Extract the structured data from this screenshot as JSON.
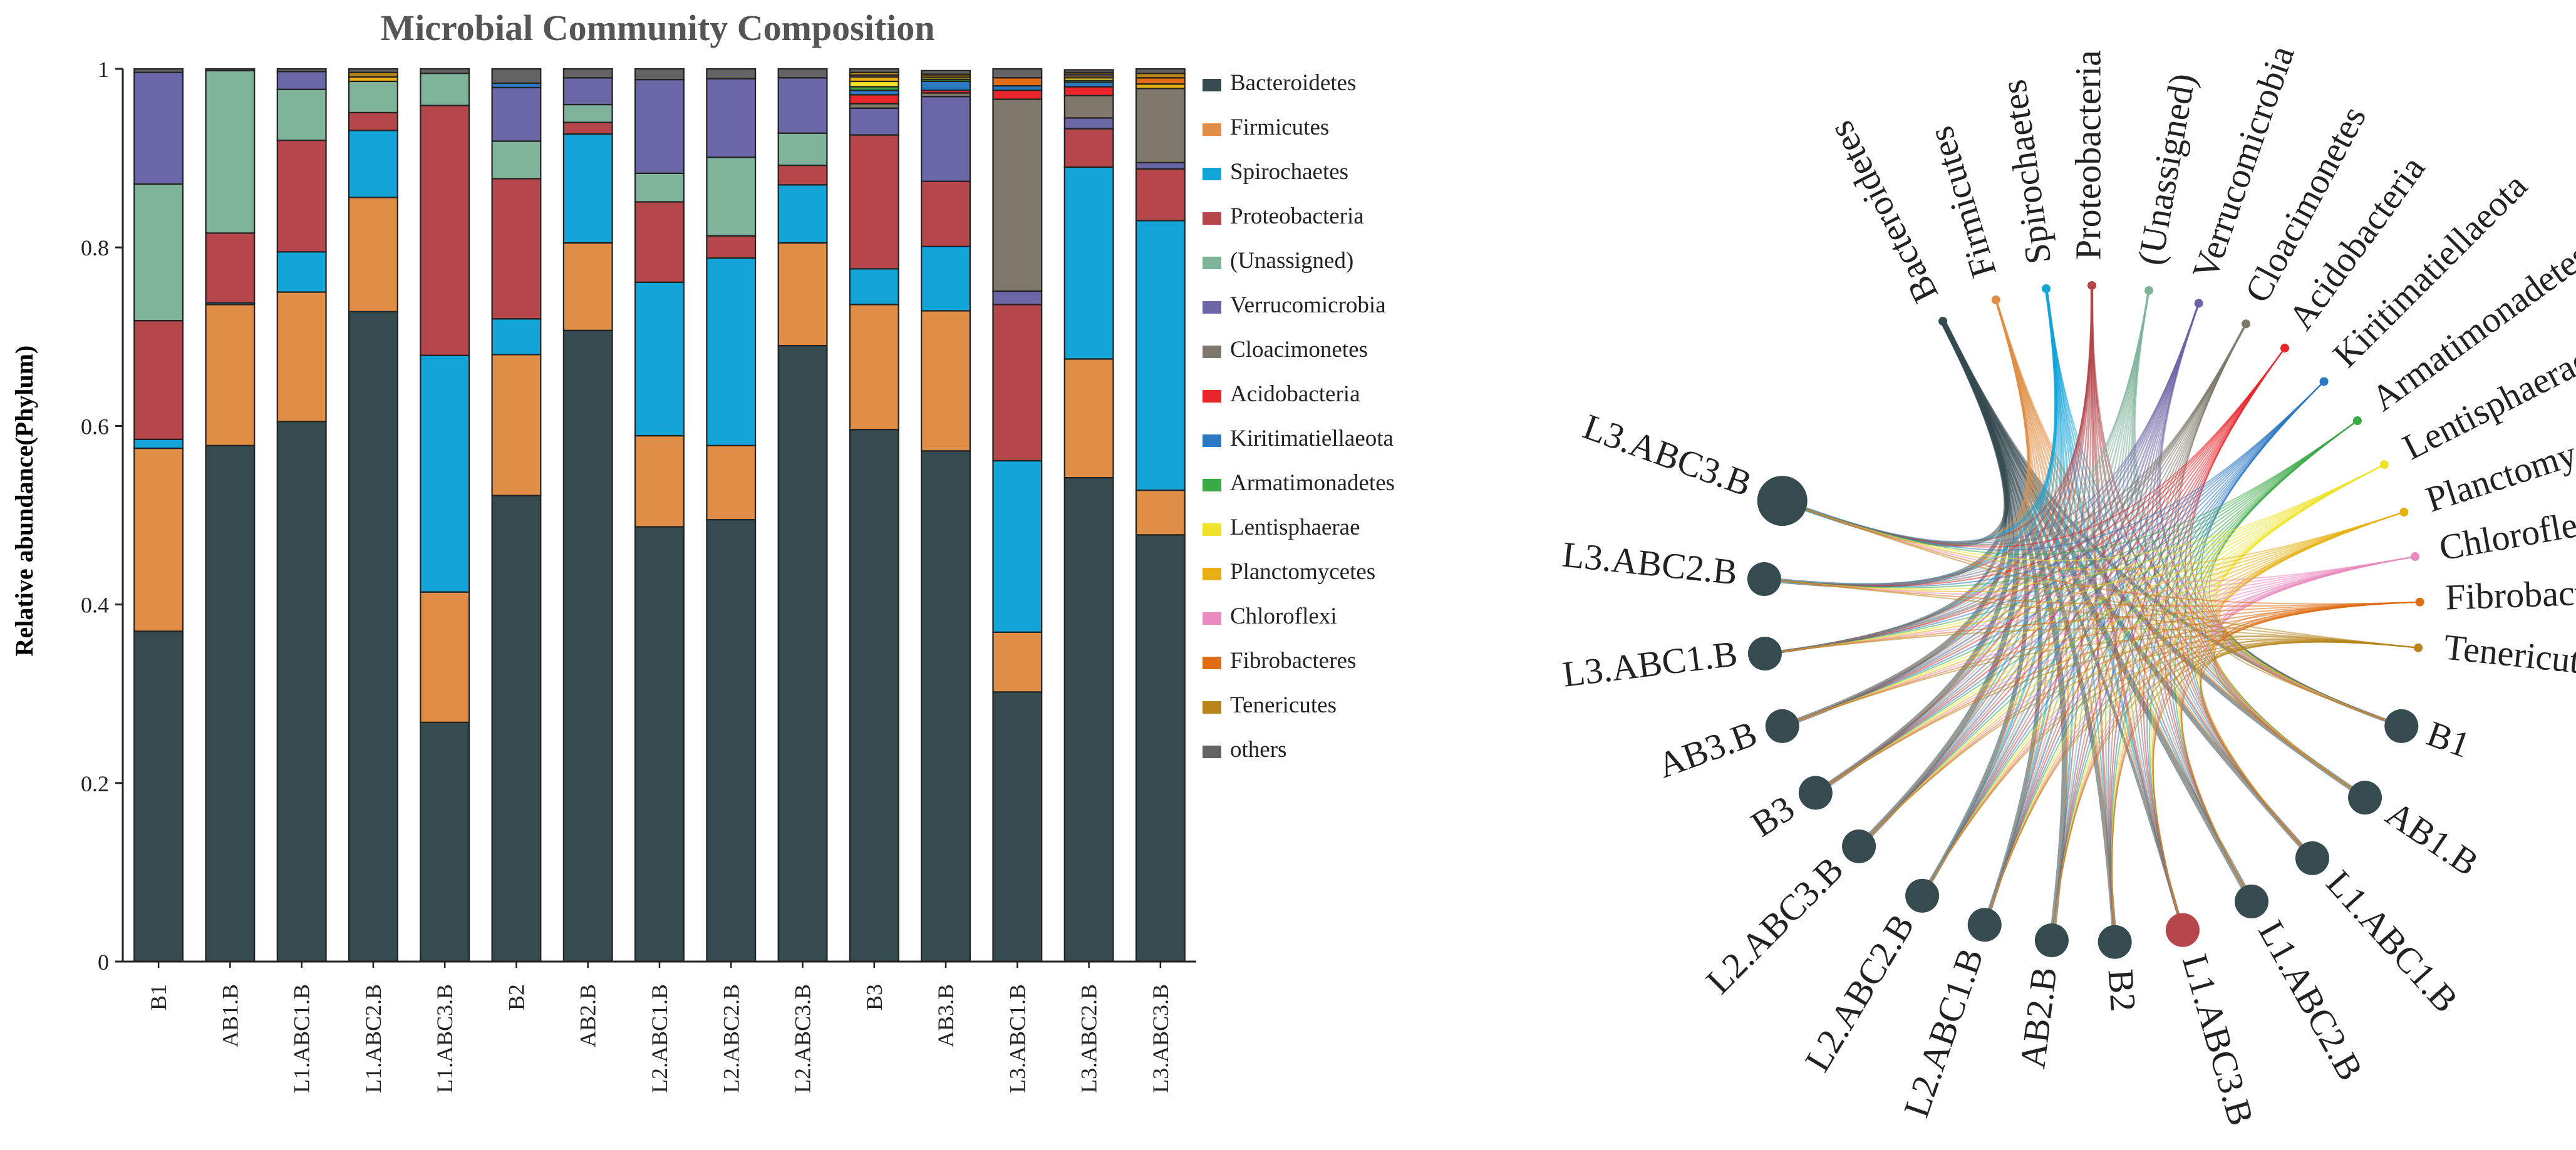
{
  "colors": {
    "Bacteroidetes": "#354b50",
    "Firmicutes": "#e08e45",
    "Spirochaetes": "#13a4d8",
    "Proteobacteria": "#b5474b",
    "(Unassigned)": "#7fb49a",
    "Verrucomicrobia": "#6b66a6",
    "Cloacimonetes": "#7d7869",
    "Acidobacteria": "#e8262b",
    "Kiritimatiellaeota": "#2b79c2",
    "Armatimonadetes": "#3aaa45",
    "Lentisphaerae": "#eee32a",
    "Planctomycetes": "#e7b013",
    "Chloroflexi": "#e98ac0",
    "Fibrobacteres": "#e06d14",
    "Tenericutes": "#b78519",
    "others": "#636363",
    "highlight_node": "#b5474b"
  },
  "chart_data": [
    {
      "type": "bar",
      "stacked": true,
      "title": "Microbial Community Composition",
      "xlabel": "",
      "ylabel": "Relative abundance(Phylum)",
      "ylim": [
        0,
        1
      ],
      "yticks": [
        "0",
        "0.2",
        "0.4",
        "0.6",
        "0.8",
        "1"
      ],
      "categories": [
        "B1",
        "AB1.B",
        "L1.ABC1.B",
        "L1.ABC2.B",
        "L1.ABC3.B",
        "B2",
        "AB2.B",
        "L2.ABC1.B",
        "L2.ABC2.B",
        "L2.ABC3.B",
        "B3",
        "AB3.B",
        "L3.ABC1.B",
        "L3.ABC2.B",
        "L3.ABC3.B"
      ],
      "legend": [
        "Bacteroidetes",
        "Firmicutes",
        "Spirochaetes",
        "Proteobacteria",
        "(Unassigned)",
        "Verrucomicrobia",
        "Cloacimonetes",
        "Acidobacteria",
        "Kiritimatiellaeota",
        "Armatimonadetes",
        "Lentisphaerae",
        "Planctomycetes",
        "Chloroflexi",
        "Fibrobacteres",
        "Tenericutes",
        "others"
      ],
      "series": [
        {
          "name": "Bacteroidetes",
          "values": [
            0.37,
            0.578,
            0.605,
            0.728,
            0.268,
            0.522,
            0.707,
            0.487,
            0.495,
            0.69,
            0.596,
            0.572,
            0.302,
            0.542,
            0.478
          ]
        },
        {
          "name": "Firmicutes",
          "values": [
            0.205,
            0.158,
            0.145,
            0.128,
            0.146,
            0.158,
            0.098,
            0.102,
            0.083,
            0.115,
            0.14,
            0.157,
            0.067,
            0.133,
            0.05
          ]
        },
        {
          "name": "Spirochaetes",
          "values": [
            0.01,
            0.002,
            0.045,
            0.075,
            0.265,
            0.04,
            0.122,
            0.172,
            0.21,
            0.065,
            0.04,
            0.072,
            0.192,
            0.215,
            0.302
          ]
        },
        {
          "name": "Proteobacteria",
          "values": [
            0.133,
            0.078,
            0.125,
            0.02,
            0.28,
            0.157,
            0.013,
            0.09,
            0.025,
            0.022,
            0.15,
            0.073,
            0.175,
            0.043,
            0.058
          ]
        },
        {
          "name": "(Unassigned)",
          "values": [
            0.153,
            0.182,
            0.057,
            0.035,
            0.036,
            0.042,
            0.02,
            0.032,
            0.088,
            0.036,
            0.0,
            0.0,
            0.0,
            0.0,
            0.0
          ]
        },
        {
          "name": "Verrucomicrobia",
          "values": [
            0.125,
            0.0,
            0.02,
            0.0,
            0.0,
            0.06,
            0.03,
            0.105,
            0.088,
            0.062,
            0.03,
            0.095,
            0.015,
            0.012,
            0.007
          ]
        },
        {
          "name": "Cloacimonetes",
          "values": [
            0.0,
            0.0,
            0.0,
            0.0,
            0.0,
            0.0,
            0.0,
            0.0,
            0.0,
            0.0,
            0.005,
            0.004,
            0.215,
            0.025,
            0.083
          ]
        },
        {
          "name": "Acidobacteria",
          "values": [
            0.0,
            0.0,
            0.0,
            0.0,
            0.0,
            0.0,
            0.0,
            0.0,
            0.0,
            0.0,
            0.01,
            0.003,
            0.01,
            0.01,
            0.0
          ]
        },
        {
          "name": "Kiritimatiellaeota",
          "values": [
            0.0,
            0.0,
            0.0,
            0.0,
            0.0,
            0.005,
            0.0,
            0.0,
            0.0,
            0.0,
            0.005,
            0.01,
            0.005,
            0.005,
            0.0
          ]
        },
        {
          "name": "Armatimonadetes",
          "values": [
            0.0,
            0.0,
            0.0,
            0.0,
            0.0,
            0.0,
            0.0,
            0.0,
            0.0,
            0.0,
            0.004,
            0.002,
            0.0,
            0.002,
            0.0
          ]
        },
        {
          "name": "Lentisphaerae",
          "values": [
            0.0,
            0.0,
            0.0,
            0.0,
            0.0,
            0.0,
            0.0,
            0.0,
            0.0,
            0.0,
            0.006,
            0.002,
            0.0,
            0.003,
            0.0
          ]
        },
        {
          "name": "Planctomycetes",
          "values": [
            0.0,
            0.0,
            0.0,
            0.005,
            0.0,
            0.0,
            0.0,
            0.0,
            0.0,
            0.0,
            0.005,
            0.002,
            0.0,
            0.002,
            0.005
          ]
        },
        {
          "name": "Chloroflexi",
          "values": [
            0.0,
            0.0,
            0.0,
            0.0,
            0.0,
            0.0,
            0.0,
            0.0,
            0.0,
            0.0,
            0.002,
            0.0,
            0.0,
            0.002,
            0.0
          ]
        },
        {
          "name": "Fibrobacteres",
          "values": [
            0.0,
            0.0,
            0.0,
            0.0,
            0.0,
            0.0,
            0.0,
            0.0,
            0.0,
            0.0,
            0.0,
            0.0,
            0.009,
            0.0,
            0.007
          ]
        },
        {
          "name": "Tenericutes",
          "values": [
            0.0,
            0.0,
            0.0,
            0.005,
            0.0,
            0.0,
            0.0,
            0.0,
            0.0,
            0.0,
            0.003,
            0.002,
            0.0,
            0.002,
            0.005
          ]
        },
        {
          "name": "others",
          "values": [
            0.004,
            0.002,
            0.003,
            0.004,
            0.005,
            0.016,
            0.01,
            0.012,
            0.011,
            0.01,
            0.004,
            0.004,
            0.01,
            0.003,
            0.005
          ]
        }
      ]
    },
    {
      "type": "chord",
      "phyla": [
        "Bacteroidetes",
        "Firmicutes",
        "Spirochaetes",
        "Proteobacteria",
        "(Unassigned)",
        "Verrucomicrobia",
        "Cloacimonetes",
        "Acidobacteria",
        "Kiritimatiellaeota",
        "Armatimonadetes",
        "Lentisphaerae",
        "Planctomycetes",
        "Chloroflexi",
        "Fibrobacteres",
        "Tenericutes"
      ],
      "samples": [
        "B1",
        "AB1.B",
        "L1.ABC1.B",
        "L1.ABC2.B",
        "L1.ABC3.B",
        "B2",
        "AB2.B",
        "L2.ABC1.B",
        "L2.ABC2.B",
        "L2.ABC3.B",
        "B3",
        "AB3.B",
        "L3.ABC1.B",
        "L3.ABC2.B",
        "L3.ABC3.B"
      ],
      "highlighted_sample": "L1.ABC3.B"
    }
  ]
}
